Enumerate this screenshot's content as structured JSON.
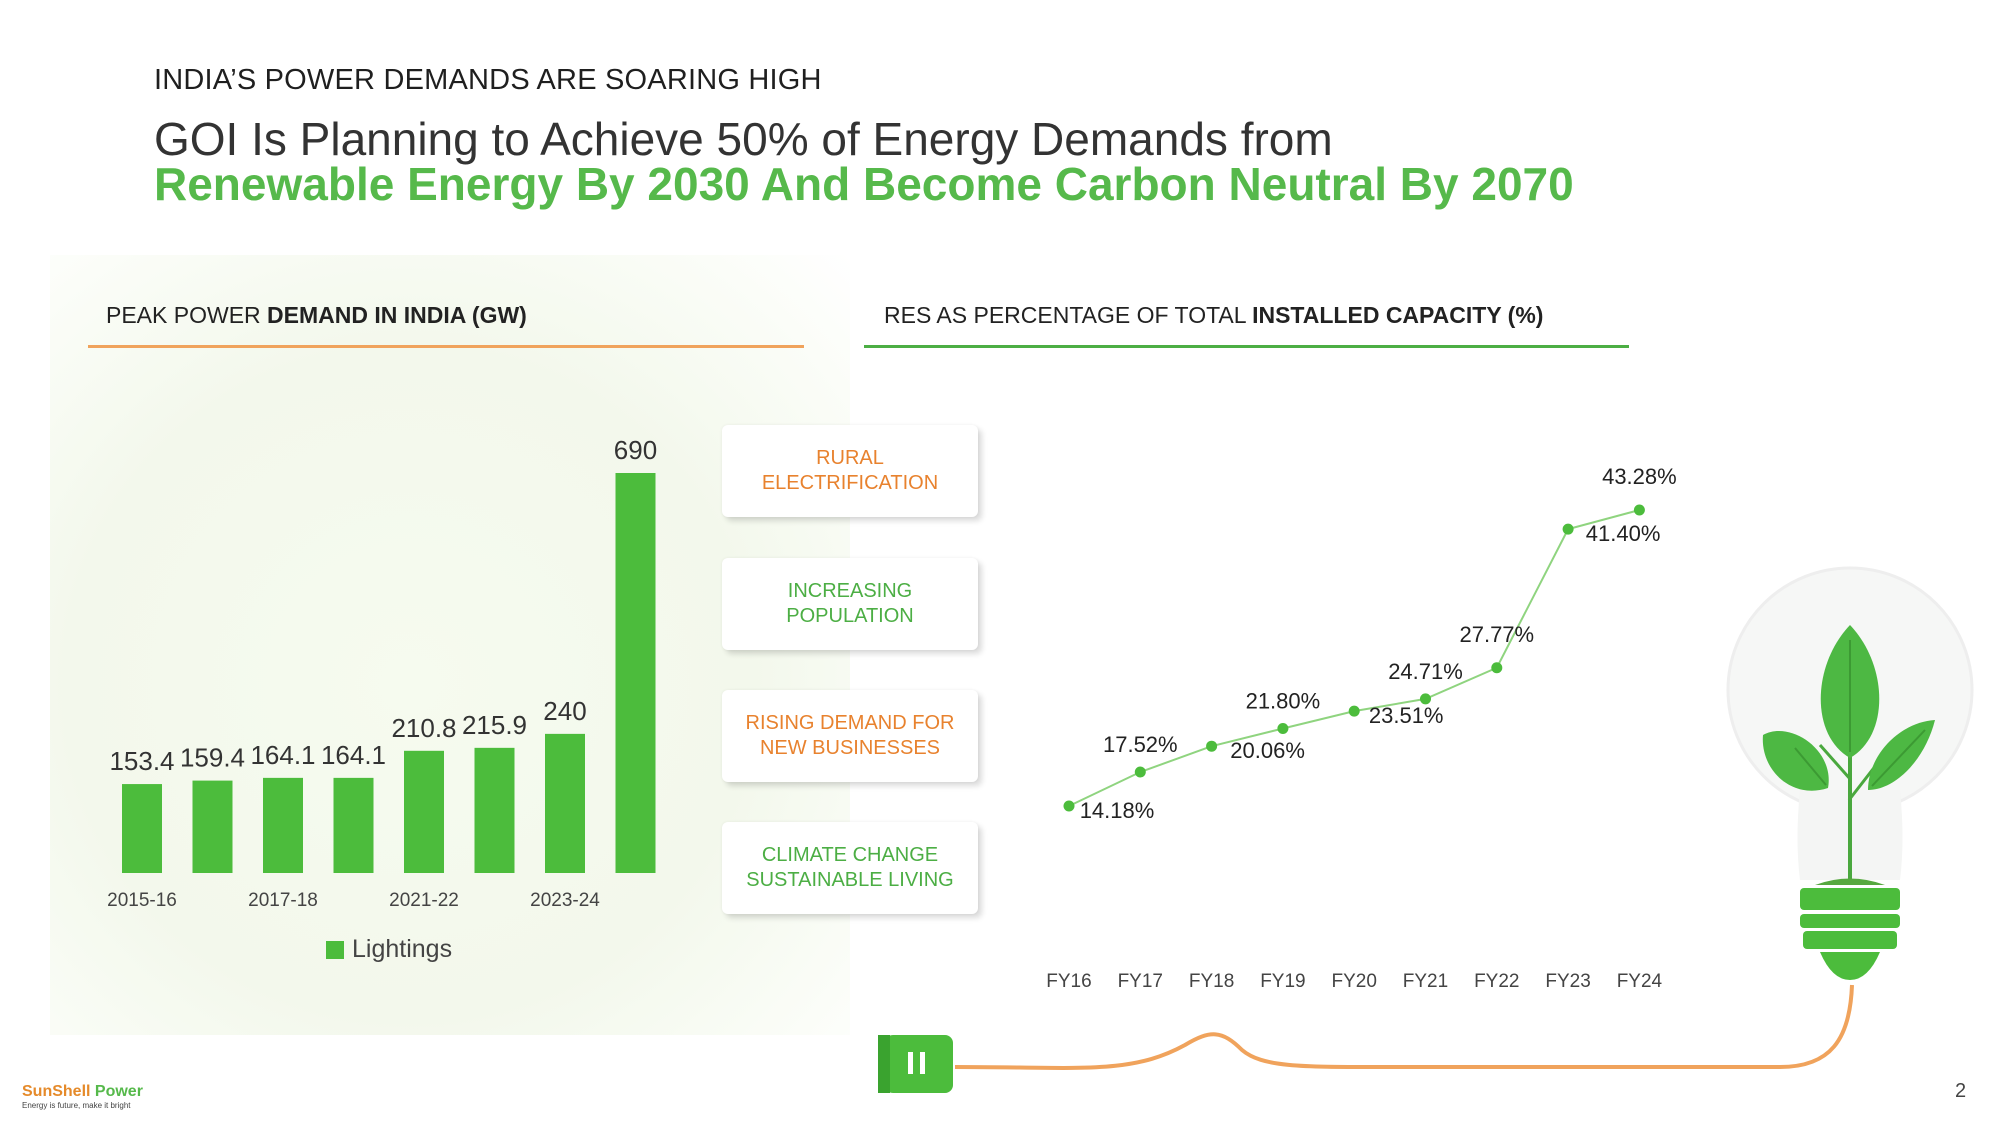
{
  "header": {
    "eyebrow": "INDIA’S POWER DEMANDS ARE SOARING HIGH",
    "title_line1": "GOI Is Planning to Achieve 50% of Energy Demands from",
    "title_line2": "Renewable Energy By 2030 And Become Carbon Neutral By 2070"
  },
  "left_panel": {
    "title_plain": "PEAK POWER ",
    "title_bold": "DEMAND IN INDIA (GW)"
  },
  "right_panel": {
    "title_plain": "RES AS PERCENTAGE OF TOTAL ",
    "title_bold": "INSTALLED CAPACITY (%)"
  },
  "drivers": [
    {
      "label": "RURAL\nELECTRIFICATION",
      "color": "#e8822e"
    },
    {
      "label": "INCREASING\nPOPULATION",
      "color": "#4cae44"
    },
    {
      "label": "RISING DEMAND FOR\nNEW BUSINESSES",
      "color": "#e8822e"
    },
    {
      "label": "CLIMATE CHANGE\nSUSTAINABLE LIVING",
      "color": "#4cae44"
    }
  ],
  "chart_data": [
    {
      "type": "bar",
      "title": "PEAK POWER DEMAND IN INDIA (GW)",
      "categories": [
        "",
        "",
        "",
        "",
        "",
        "",
        "",
        ""
      ],
      "x_tick_labels": [
        "2015-16",
        "2017-18",
        "2021-22",
        "2023-24"
      ],
      "series": [
        {
          "name": "Lightings",
          "values": [
            153.4,
            159.4,
            164.1,
            164.1,
            210.8,
            215.9,
            240,
            690
          ],
          "color": "#4cbc3c"
        }
      ],
      "data_labels": [
        "153.4",
        "159.4",
        "164.1",
        "164.1",
        "210.8",
        "215.9",
        "240",
        "690"
      ],
      "ylim": [
        0,
        690
      ],
      "legend": "bottom",
      "grid": false
    },
    {
      "type": "line",
      "title": "RES AS PERCENTAGE OF TOTAL INSTALLED CAPACITY (%)",
      "x": [
        "FY16",
        "FY17",
        "FY18",
        "FY19",
        "FY20",
        "FY21",
        "FY22",
        "FY23",
        "FY24"
      ],
      "series": [
        {
          "values": [
            14.18,
            17.52,
            20.06,
            21.8,
            23.51,
            24.71,
            27.77,
            41.4,
            43.28
          ],
          "color": "#4cbc3c"
        }
      ],
      "data_labels": [
        "14.18%",
        "17.52%",
        "20.06%",
        "21.80%",
        "23.51%",
        "24.71%",
        "27.77%",
        "41.40%",
        "43.28%"
      ],
      "grid": false,
      "legend": "none"
    }
  ],
  "colors": {
    "green": "#4cbc3c",
    "orange": "#f0a35c",
    "accent_green_title": "#56b94b"
  },
  "footer": {
    "logo_a": "SunShell",
    "logo_b": " Power",
    "tagline": "Energy is future, make it bright",
    "page_number": "2"
  },
  "icons": [
    "bulb-plant-icon",
    "power-plug-icon"
  ]
}
